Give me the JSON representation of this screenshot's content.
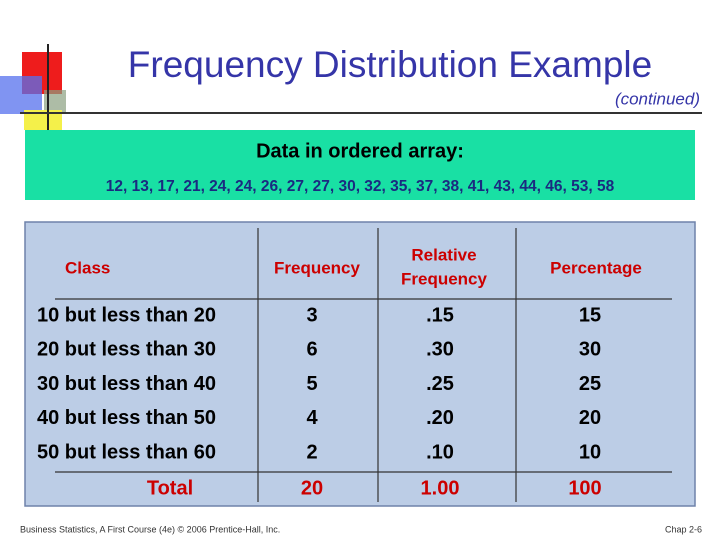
{
  "header": {
    "title": "Frequency Distribution Example",
    "subtitle": "(continued)"
  },
  "data_box": {
    "heading": "Data in ordered array:",
    "array": "12, 13, 17, 21, 24, 24, 26, 27, 27, 30, 32, 35, 37, 38, 41, 43, 44, 46, 53, 58"
  },
  "table": {
    "columns": [
      "Class",
      "Frequency",
      [
        "Relative",
        "Frequency"
      ],
      "Percentage"
    ],
    "rows": [
      [
        "10 but less than 20",
        "3",
        ".15",
        "15"
      ],
      [
        "20 but less than 30",
        "6",
        ".30",
        "30"
      ],
      [
        "30 but less than 40",
        "5",
        ".25",
        "25"
      ],
      [
        "40 but less than 50",
        "4",
        ".20",
        "20"
      ],
      [
        "50 but less than 60",
        "2",
        ".10",
        "10"
      ]
    ],
    "total": [
      "Total",
      "20",
      "1.00",
      "100"
    ]
  },
  "footer": {
    "left": "Business Statistics, A First Course (4e) © 2006 Prentice-Hall, Inc.",
    "right": "Chap 2-6"
  }
}
